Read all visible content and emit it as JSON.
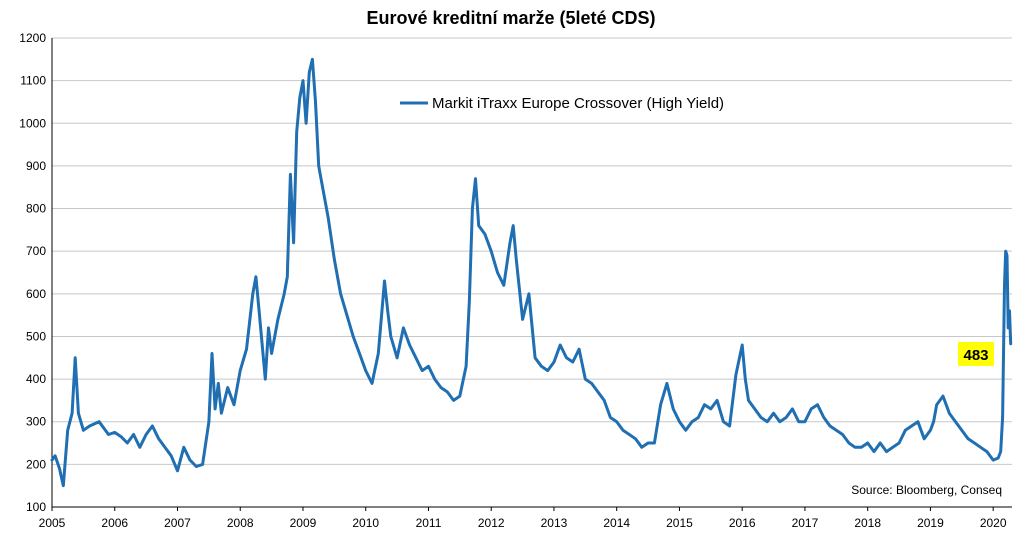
{
  "chart_data": {
    "type": "line",
    "title": "Eurové kreditní marže (5leté CDS)",
    "xlabel": "",
    "ylabel": "",
    "xlim": [
      2005.0,
      2020.3
    ],
    "ylim": [
      100,
      1200
    ],
    "y_ticks": [
      100,
      200,
      300,
      400,
      500,
      600,
      700,
      800,
      900,
      1000,
      1100,
      1200
    ],
    "x_ticks": [
      "2005",
      "2006",
      "2007",
      "2008",
      "2009",
      "2010",
      "2011",
      "2012",
      "2013",
      "2014",
      "2015",
      "2016",
      "2017",
      "2018",
      "2019",
      "2020"
    ],
    "grid": true,
    "legend_position": "top-center",
    "series": [
      {
        "name": "Markit iTraxx Europe Crossover (High Yield)",
        "color": "#1f6fb2",
        "x": [
          2005.0,
          2005.05,
          2005.12,
          2005.18,
          2005.25,
          2005.32,
          2005.37,
          2005.42,
          2005.5,
          2005.6,
          2005.75,
          2005.9,
          2006.0,
          2006.1,
          2006.2,
          2006.3,
          2006.4,
          2006.5,
          2006.6,
          2006.7,
          2006.8,
          2006.9,
          2007.0,
          2007.1,
          2007.2,
          2007.3,
          2007.4,
          2007.5,
          2007.55,
          2007.6,
          2007.65,
          2007.7,
          2007.8,
          2007.9,
          2008.0,
          2008.1,
          2008.2,
          2008.25,
          2008.3,
          2008.35,
          2008.4,
          2008.45,
          2008.5,
          2008.6,
          2008.7,
          2008.75,
          2008.8,
          2008.85,
          2008.9,
          2008.95,
          2009.0,
          2009.05,
          2009.1,
          2009.15,
          2009.2,
          2009.25,
          2009.3,
          2009.4,
          2009.5,
          2009.6,
          2009.7,
          2009.8,
          2009.9,
          2010.0,
          2010.1,
          2010.2,
          2010.3,
          2010.35,
          2010.4,
          2010.5,
          2010.6,
          2010.7,
          2010.8,
          2010.9,
          2011.0,
          2011.1,
          2011.2,
          2011.3,
          2011.4,
          2011.5,
          2011.6,
          2011.65,
          2011.7,
          2011.75,
          2011.8,
          2011.9,
          2012.0,
          2012.1,
          2012.2,
          2012.3,
          2012.35,
          2012.4,
          2012.5,
          2012.6,
          2012.7,
          2012.8,
          2012.9,
          2013.0,
          2013.1,
          2013.2,
          2013.3,
          2013.4,
          2013.5,
          2013.6,
          2013.7,
          2013.8,
          2013.9,
          2014.0,
          2014.1,
          2014.2,
          2014.3,
          2014.4,
          2014.5,
          2014.6,
          2014.7,
          2014.8,
          2014.9,
          2015.0,
          2015.1,
          2015.2,
          2015.3,
          2015.4,
          2015.5,
          2015.6,
          2015.7,
          2015.8,
          2015.9,
          2016.0,
          2016.05,
          2016.1,
          2016.2,
          2016.3,
          2016.4,
          2016.5,
          2016.6,
          2016.7,
          2016.8,
          2016.9,
          2017.0,
          2017.1,
          2017.2,
          2017.3,
          2017.4,
          2017.5,
          2017.6,
          2017.7,
          2017.8,
          2017.9,
          2018.0,
          2018.1,
          2018.2,
          2018.3,
          2018.4,
          2018.5,
          2018.6,
          2018.7,
          2018.8,
          2018.9,
          2019.0,
          2019.05,
          2019.1,
          2019.2,
          2019.3,
          2019.4,
          2019.5,
          2019.6,
          2019.7,
          2019.8,
          2019.9,
          2020.0,
          2020.08,
          2020.12,
          2020.15,
          2020.18,
          2020.2,
          2020.22,
          2020.24,
          2020.26,
          2020.28
        ],
        "values": [
          210,
          220,
          190,
          150,
          280,
          320,
          450,
          320,
          280,
          290,
          300,
          270,
          275,
          265,
          250,
          270,
          240,
          270,
          290,
          260,
          240,
          220,
          185,
          240,
          210,
          195,
          200,
          300,
          460,
          330,
          390,
          320,
          380,
          340,
          420,
          470,
          600,
          640,
          560,
          480,
          400,
          520,
          460,
          540,
          600,
          640,
          880,
          720,
          980,
          1060,
          1100,
          1000,
          1120,
          1150,
          1050,
          900,
          860,
          780,
          680,
          600,
          550,
          500,
          460,
          420,
          390,
          460,
          630,
          560,
          500,
          450,
          520,
          480,
          450,
          420,
          430,
          400,
          380,
          370,
          350,
          360,
          430,
          580,
          800,
          870,
          760,
          740,
          700,
          650,
          620,
          720,
          760,
          680,
          540,
          600,
          450,
          430,
          420,
          440,
          480,
          450,
          440,
          470,
          400,
          390,
          370,
          350,
          310,
          300,
          280,
          270,
          260,
          240,
          250,
          250,
          340,
          390,
          330,
          300,
          280,
          300,
          310,
          340,
          330,
          350,
          300,
          290,
          410,
          480,
          400,
          350,
          330,
          310,
          300,
          320,
          300,
          310,
          330,
          300,
          300,
          330,
          340,
          310,
          290,
          280,
          270,
          250,
          240,
          240,
          250,
          230,
          250,
          230,
          240,
          250,
          280,
          290,
          300,
          260,
          280,
          300,
          340,
          360,
          320,
          300,
          280,
          260,
          250,
          240,
          230,
          210,
          215,
          230,
          310,
          620,
          700,
          690,
          520,
          560,
          483
        ]
      }
    ],
    "annotations": [
      {
        "text": "Source: Bloomberg, Conseq"
      },
      {
        "text": "483",
        "value": 483,
        "background": "#ffff00"
      }
    ]
  }
}
